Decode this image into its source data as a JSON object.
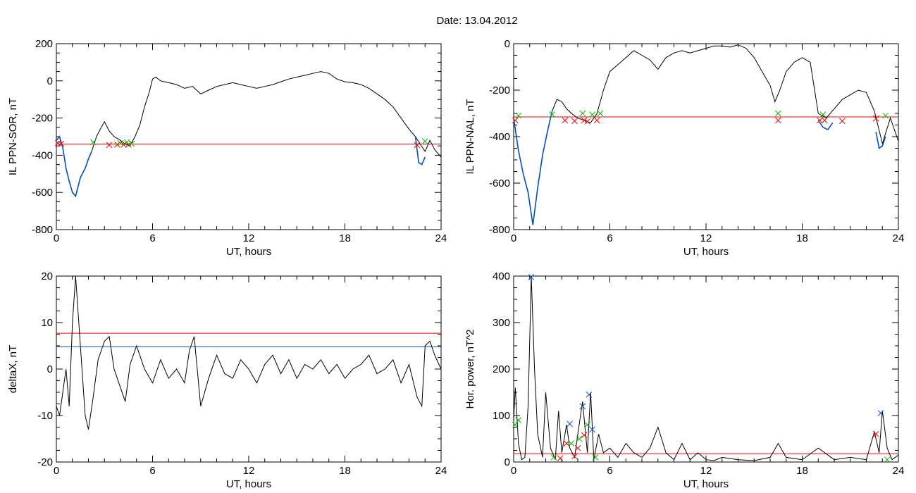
{
  "title": "Date:  13.04.2012",
  "chart_data": [
    {
      "type": "line",
      "xlabel": "UT, hours",
      "ylabel": "IL PPN-SOR, nT",
      "xlim": [
        0,
        24
      ],
      "ylim": [
        -800,
        200
      ],
      "xticks": [
        0,
        6,
        12,
        18,
        24
      ],
      "yticks": [
        -800,
        -600,
        -400,
        -200,
        0,
        200
      ],
      "hlines": [
        {
          "y": -340,
          "color": "#ff0000"
        }
      ],
      "series": [
        {
          "color": "#000000",
          "x": [
            0,
            0.2,
            0.4,
            0.6,
            0.8,
            1.0,
            1.2,
            1.5,
            1.8,
            2.0,
            2.2,
            2.5,
            2.8,
            3.0,
            3.3,
            3.6,
            4.0,
            4.3,
            4.6,
            4.9,
            5.2,
            5.5,
            5.8,
            6.0,
            6.2,
            6.5,
            7.0,
            7.5,
            8.0,
            8.5,
            9.0,
            9.5,
            10,
            10.5,
            11,
            11.5,
            12,
            12.5,
            13,
            13.5,
            14,
            14.5,
            15,
            15.5,
            16,
            16.5,
            17,
            17.5,
            18,
            18.5,
            19,
            19.5,
            20,
            20.5,
            21,
            21.5,
            22,
            22.4,
            22.7,
            23.0,
            23.3,
            23.6,
            24
          ],
          "y": [
            -320,
            -300,
            -360,
            -470,
            -540,
            -600,
            -620,
            -520,
            -470,
            -420,
            -380,
            -300,
            -250,
            -220,
            -270,
            -300,
            -320,
            -340,
            -350,
            -300,
            -240,
            -140,
            -60,
            10,
            20,
            0,
            -10,
            -20,
            -40,
            -30,
            -70,
            -50,
            -30,
            -20,
            -10,
            -20,
            -30,
            -40,
            -30,
            -20,
            -5,
            10,
            20,
            30,
            40,
            50,
            40,
            10,
            -5,
            -10,
            -20,
            -40,
            -70,
            -100,
            -140,
            -200,
            -260,
            -300,
            -340,
            -380,
            -320,
            -370,
            -410
          ]
        },
        {
          "color": "#0050c8",
          "x": [
            0,
            0.2,
            0.4,
            0.6,
            0.8,
            1.0,
            1.2,
            1.5,
            1.8,
            2.0,
            2.2
          ],
          "y": [
            -320,
            -300,
            -360,
            -470,
            -540,
            -600,
            -620,
            -520,
            -470,
            -420,
            -380
          ]
        },
        {
          "color": "#0050c8",
          "x": [
            22.4,
            22.6,
            22.8,
            23.0
          ],
          "y": [
            -300,
            -440,
            -450,
            -410
          ]
        }
      ],
      "markers": [
        {
          "color": "#ff0000",
          "x": [
            0.1,
            0.3,
            3.3,
            3.8,
            4.2,
            4.5,
            22.5
          ],
          "y": [
            -335,
            -338,
            -345,
            -343,
            -343,
            -342,
            -345
          ]
        },
        {
          "color": "#00bb00",
          "x": [
            2.3,
            4.0,
            4.4,
            4.7,
            23.0
          ],
          "y": [
            -330,
            -335,
            -330,
            -338,
            -325
          ]
        }
      ]
    },
    {
      "type": "line",
      "xlabel": "UT, hours",
      "ylabel": "IL PPN-NAL, nT",
      "xlim": [
        0,
        24
      ],
      "ylim": [
        -800,
        0
      ],
      "xticks": [
        0,
        6,
        12,
        18,
        24
      ],
      "yticks": [
        -800,
        -600,
        -400,
        -200,
        0
      ],
      "hlines": [
        {
          "y": -315,
          "color": "#ff0000"
        }
      ],
      "series": [
        {
          "color": "#000000",
          "x": [
            0,
            0.3,
            0.6,
            0.9,
            1.2,
            1.5,
            1.8,
            2.1,
            2.4,
            2.7,
            3.0,
            3.3,
            3.6,
            4.0,
            4.4,
            4.8,
            5.2,
            5.6,
            6.0,
            6.5,
            7.0,
            7.5,
            8.0,
            8.5,
            9.0,
            9.5,
            10,
            10.5,
            11,
            11.5,
            12,
            12.5,
            13,
            13.5,
            14,
            14.5,
            15,
            15.5,
            16,
            16.3,
            16.6,
            17,
            17.5,
            18,
            18.5,
            19,
            19.5,
            20,
            20.5,
            21,
            21.5,
            22,
            22.5,
            23,
            23.5,
            24
          ],
          "y": [
            -320,
            -460,
            -560,
            -640,
            -780,
            -620,
            -480,
            -380,
            -290,
            -240,
            -250,
            -280,
            -300,
            -320,
            -330,
            -340,
            -300,
            -200,
            -120,
            -90,
            -60,
            -30,
            -50,
            -70,
            -110,
            -60,
            -40,
            -30,
            -40,
            -30,
            -20,
            -10,
            -10,
            -15,
            -5,
            -20,
            -60,
            -120,
            -180,
            -250,
            -200,
            -120,
            -80,
            -60,
            -80,
            -300,
            -320,
            -280,
            -240,
            -220,
            -200,
            -210,
            -290,
            -430,
            -320,
            -420
          ]
        },
        {
          "color": "#0050c8",
          "x": [
            0,
            0.3,
            0.6,
            0.9,
            1.2,
            1.5,
            1.8,
            2.1,
            2.4
          ],
          "y": [
            -320,
            -460,
            -560,
            -640,
            -780,
            -620,
            -480,
            -380,
            -290
          ]
        },
        {
          "color": "#0050c8",
          "x": [
            19.0,
            19.3,
            19.6,
            19.9
          ],
          "y": [
            -330,
            -360,
            -370,
            -340
          ]
        },
        {
          "color": "#0050c8",
          "x": [
            22.6,
            22.8,
            23.0,
            23.2
          ],
          "y": [
            -380,
            -450,
            -440,
            -400
          ]
        }
      ],
      "markers": [
        {
          "color": "#ff0000",
          "x": [
            0.1,
            3.2,
            3.8,
            4.4,
            4.6,
            5.2,
            16.5,
            19.1,
            19.4,
            20.5,
            22.6
          ],
          "y": [
            -330,
            -330,
            -333,
            -330,
            -335,
            -330,
            -330,
            -330,
            -330,
            -333,
            -322
          ]
        },
        {
          "color": "#00bb00",
          "x": [
            0.3,
            2.4,
            4.3,
            4.9,
            5.4,
            16.5,
            19.3,
            23.2
          ],
          "y": [
            -310,
            -305,
            -300,
            -305,
            -300,
            -300,
            -305,
            -310
          ]
        }
      ]
    },
    {
      "type": "line",
      "xlabel": "UT, hours",
      "ylabel": "deltaX, nT",
      "xlim": [
        0,
        24
      ],
      "ylim": [
        -20,
        20
      ],
      "xticks": [
        0,
        6,
        12,
        18,
        24
      ],
      "yticks": [
        -20,
        -10,
        0,
        10,
        20
      ],
      "hlines": [
        {
          "y": 7.7,
          "color": "#ff0000"
        },
        {
          "y": 4.8,
          "color": "#0050c8"
        }
      ],
      "series": [
        {
          "color": "#000000",
          "x": [
            0,
            0.2,
            0.4,
            0.6,
            0.8,
            1.0,
            1.2,
            1.5,
            1.8,
            2.0,
            2.3,
            2.6,
            3.0,
            3.3,
            3.6,
            4.0,
            4.3,
            4.6,
            5.0,
            5.5,
            6.0,
            6.5,
            7.0,
            7.5,
            8.0,
            8.3,
            8.6,
            9.0,
            9.5,
            10,
            10.5,
            11,
            11.5,
            12,
            12.5,
            13,
            13.5,
            14,
            14.5,
            15,
            15.5,
            16,
            16.5,
            17,
            17.5,
            18,
            18.5,
            19,
            19.5,
            20,
            20.5,
            21,
            21.5,
            22,
            22.5,
            22.8,
            23.0,
            23.3,
            23.6,
            24
          ],
          "y": [
            -8,
            -10,
            -5,
            0,
            -8,
            10,
            20,
            5,
            -10,
            -13,
            -6,
            2,
            6,
            7,
            0,
            -4,
            -7,
            1,
            5,
            0,
            -3,
            2,
            -2,
            0,
            -3,
            4,
            7,
            -8,
            -2,
            3,
            -1,
            -2,
            2,
            0,
            -3,
            1,
            3,
            -1,
            2,
            -2,
            1,
            0,
            2,
            -1,
            1,
            -2,
            0,
            1,
            3,
            -1,
            0,
            2,
            -3,
            1,
            -6,
            -8,
            5,
            6,
            3,
            0
          ]
        }
      ],
      "markers": []
    },
    {
      "type": "line",
      "xlabel": "UT, hours",
      "ylabel": "Hor. power, nT^2",
      "xlim": [
        0,
        24
      ],
      "ylim": [
        0,
        400
      ],
      "xticks": [
        0,
        6,
        12,
        18,
        24
      ],
      "yticks": [
        0,
        100,
        200,
        300,
        400
      ],
      "hlines": [
        {
          "y": 18,
          "color": "#ff0000"
        }
      ],
      "series": [
        {
          "color": "#000000",
          "x": [
            0,
            0.1,
            0.3,
            0.5,
            0.7,
            0.9,
            1.1,
            1.3,
            1.5,
            1.8,
            2.0,
            2.3,
            2.6,
            2.8,
            3.0,
            3.3,
            3.5,
            3.8,
            4.0,
            4.3,
            4.6,
            4.8,
            5.0,
            5.3,
            5.6,
            6.0,
            6.5,
            7.0,
            7.5,
            8.0,
            8.5,
            9.0,
            9.5,
            10,
            10.5,
            11,
            11.5,
            12,
            12.5,
            13,
            14,
            15,
            16,
            16.5,
            17,
            18,
            19,
            20,
            21,
            22,
            22.5,
            22.8,
            23.0,
            23.3,
            23.6,
            24
          ],
          "y": [
            90,
            160,
            40,
            5,
            10,
            120,
            400,
            200,
            60,
            10,
            150,
            30,
            5,
            110,
            20,
            80,
            30,
            10,
            60,
            130,
            20,
            150,
            5,
            60,
            20,
            30,
            10,
            40,
            20,
            10,
            30,
            75,
            20,
            5,
            40,
            5,
            20,
            5,
            3,
            10,
            5,
            3,
            10,
            40,
            10,
            5,
            30,
            5,
            10,
            5,
            65,
            20,
            110,
            30,
            5,
            15
          ]
        }
      ],
      "markers": [
        {
          "color": "#0050c8",
          "x": [
            1.1,
            3.5,
            4.3,
            4.7,
            4.9,
            22.9
          ],
          "y": [
            398,
            82,
            120,
            145,
            70,
            105
          ]
        },
        {
          "color": "#ff0000",
          "x": [
            2.9,
            3.3,
            3.8,
            4.0,
            4.4,
            22.6
          ],
          "y": [
            8,
            40,
            12,
            30,
            58,
            60
          ]
        },
        {
          "color": "#00bb00",
          "x": [
            0.1,
            0.3,
            2.5,
            3.6,
            4.1,
            4.6,
            5.1,
            23.3
          ],
          "y": [
            80,
            90,
            10,
            40,
            50,
            80,
            10,
            5
          ]
        }
      ]
    }
  ]
}
